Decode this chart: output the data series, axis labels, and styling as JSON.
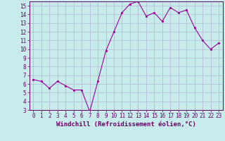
{
  "x": [
    0,
    1,
    2,
    3,
    4,
    5,
    6,
    7,
    8,
    9,
    10,
    11,
    12,
    13,
    14,
    15,
    16,
    17,
    18,
    19,
    20,
    21,
    22,
    23
  ],
  "y": [
    6.5,
    6.3,
    5.5,
    6.3,
    5.8,
    5.3,
    5.3,
    2.8,
    6.3,
    9.8,
    12.0,
    14.2,
    15.2,
    15.5,
    13.8,
    14.2,
    13.2,
    14.8,
    14.2,
    14.5,
    12.5,
    11.0,
    10.0,
    10.7
  ],
  "line_color": "#990099",
  "marker_color": "#990099",
  "bg_color": "#c8ecec",
  "grid_color": "#b0b8d0",
  "axis_color": "#660066",
  "xlabel": "Windchill (Refroidissement éolien,°C)",
  "ylim": [
    3,
    15.5
  ],
  "xlim": [
    -0.5,
    23.5
  ],
  "yticks": [
    3,
    4,
    5,
    6,
    7,
    8,
    9,
    10,
    11,
    12,
    13,
    14,
    15
  ],
  "xticks": [
    0,
    1,
    2,
    3,
    4,
    5,
    6,
    7,
    8,
    9,
    10,
    11,
    12,
    13,
    14,
    15,
    16,
    17,
    18,
    19,
    20,
    21,
    22,
    23
  ],
  "tick_fontsize": 5.5,
  "label_fontsize": 6.5
}
